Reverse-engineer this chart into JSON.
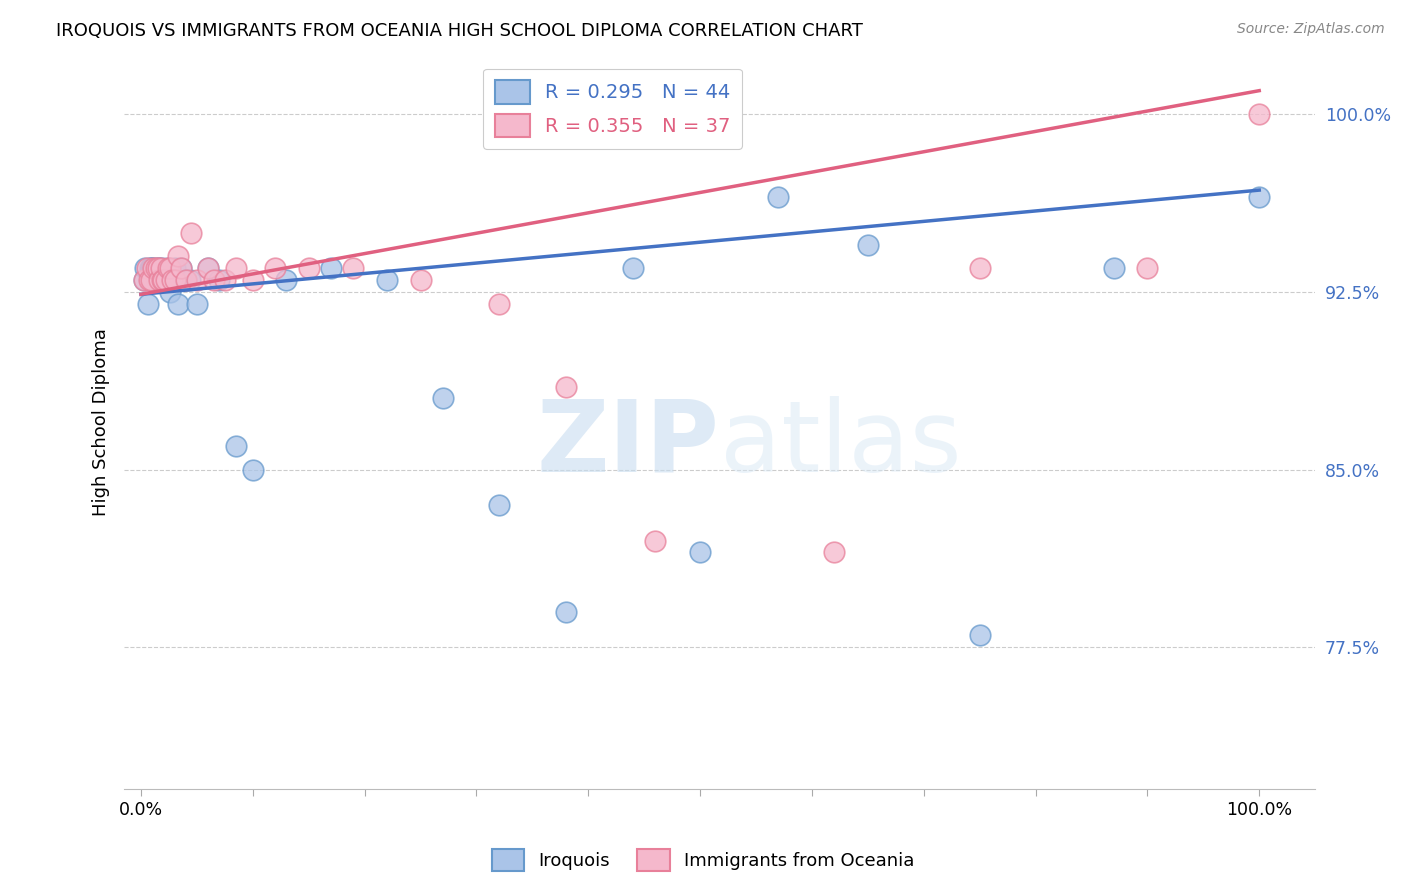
{
  "title": "IROQUOIS VS IMMIGRANTS FROM OCEANIA HIGH SCHOOL DIPLOMA CORRELATION CHART",
  "source": "Source: ZipAtlas.com",
  "ylabel": "High School Diploma",
  "legend_labels": [
    "Iroquois",
    "Immigrants from Oceania"
  ],
  "iroquois_face_color": "#aac4e8",
  "oceania_face_color": "#f5b8cc",
  "iroquois_edge_color": "#6699cc",
  "oceania_edge_color": "#e8809a",
  "iroquois_line_color": "#4472c4",
  "oceania_line_color": "#e06080",
  "R_iroquois": 0.295,
  "N_iroquois": 44,
  "R_oceania": 0.355,
  "N_oceania": 37,
  "watermark_zip": "ZIP",
  "watermark_atlas": "atlas",
  "xlim": [
    -0.015,
    1.05
  ],
  "ylim": [
    0.715,
    1.025
  ],
  "yticks": [
    0.775,
    0.85,
    0.925,
    1.0
  ],
  "ytick_labels": [
    "77.5%",
    "85.0%",
    "92.5%",
    "100.0%"
  ],
  "xticks": [
    0.0,
    1.0
  ],
  "xtick_labels": [
    "0.0%",
    "100.0%"
  ],
  "blue_line_x0": 0.0,
  "blue_line_y0": 0.924,
  "blue_line_x1": 1.0,
  "blue_line_y1": 0.968,
  "pink_line_x0": 0.0,
  "pink_line_y0": 0.924,
  "pink_line_x1": 1.0,
  "pink_line_y1": 1.01,
  "iroquois_x": [
    0.003,
    0.004,
    0.006,
    0.008,
    0.009,
    0.01,
    0.011,
    0.012,
    0.013,
    0.014,
    0.015,
    0.016,
    0.017,
    0.018,
    0.019,
    0.02,
    0.021,
    0.022,
    0.024,
    0.026,
    0.028,
    0.03,
    0.033,
    0.036,
    0.04,
    0.044,
    0.05,
    0.06,
    0.07,
    0.085,
    0.1,
    0.13,
    0.17,
    0.22,
    0.27,
    0.32,
    0.38,
    0.44,
    0.5,
    0.57,
    0.65,
    0.75,
    0.87,
    1.0
  ],
  "iroquois_y": [
    0.93,
    0.935,
    0.92,
    0.935,
    0.935,
    0.935,
    0.93,
    0.935,
    0.93,
    0.93,
    0.935,
    0.935,
    0.93,
    0.93,
    0.935,
    0.93,
    0.93,
    0.93,
    0.935,
    0.925,
    0.93,
    0.935,
    0.92,
    0.935,
    0.93,
    0.93,
    0.92,
    0.935,
    0.93,
    0.86,
    0.85,
    0.93,
    0.935,
    0.93,
    0.88,
    0.835,
    0.79,
    0.935,
    0.815,
    0.965,
    0.945,
    0.78,
    0.935,
    0.965
  ],
  "oceania_x": [
    0.003,
    0.005,
    0.007,
    0.009,
    0.011,
    0.013,
    0.015,
    0.016,
    0.018,
    0.019,
    0.02,
    0.022,
    0.024,
    0.026,
    0.028,
    0.03,
    0.033,
    0.036,
    0.04,
    0.045,
    0.05,
    0.06,
    0.065,
    0.075,
    0.085,
    0.1,
    0.12,
    0.15,
    0.19,
    0.25,
    0.32,
    0.38,
    0.46,
    0.62,
    0.75,
    0.9,
    1.0
  ],
  "oceania_y": [
    0.93,
    0.935,
    0.93,
    0.93,
    0.935,
    0.935,
    0.935,
    0.93,
    0.935,
    0.93,
    0.93,
    0.93,
    0.935,
    0.935,
    0.93,
    0.93,
    0.94,
    0.935,
    0.93,
    0.95,
    0.93,
    0.935,
    0.93,
    0.93,
    0.935,
    0.93,
    0.935,
    0.935,
    0.935,
    0.93,
    0.92,
    0.885,
    0.82,
    0.815,
    0.935,
    0.935,
    1.0
  ]
}
